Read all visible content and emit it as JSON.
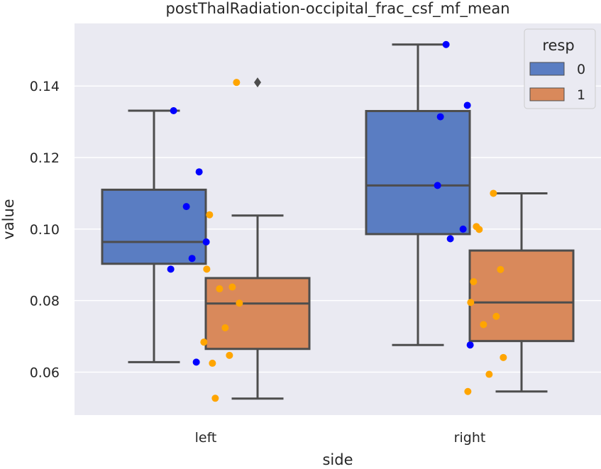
{
  "chart_data": {
    "type": "box",
    "title": "postThalRadiation-occipital_frac_csf_mf_mean",
    "xlabel": "side",
    "ylabel": "value",
    "categories": [
      "left",
      "right"
    ],
    "ylim": [
      0.048,
      0.1575
    ],
    "yticks": [
      0.06,
      0.08,
      0.1,
      0.12,
      0.14
    ],
    "ytick_labels": [
      "0.06",
      "0.08",
      "0.10",
      "0.12",
      "0.14"
    ],
    "grid": true,
    "legend": {
      "title": "resp",
      "position": "top-right",
      "entries": [
        "0",
        "1"
      ]
    },
    "colors": {
      "plot_bg": "#eaeaf2",
      "grid": "#ffffff",
      "box_0": "#5a7dc2",
      "box_1": "#d9895b",
      "edge": "#4d4d4d",
      "point_0": "#0000ff",
      "point_1": "#ffa500"
    },
    "series": [
      {
        "name": "0",
        "boxes": [
          {
            "category": "left",
            "whisker_low": 0.0628,
            "q1": 0.0903,
            "median": 0.0964,
            "q3": 0.111,
            "whisker_high": 0.1331,
            "fliers": []
          },
          {
            "category": "right",
            "whisker_low": 0.0676,
            "q1": 0.0986,
            "median": 0.1122,
            "q3": 0.133,
            "whisker_high": 0.1516,
            "fliers": []
          }
        ],
        "points": [
          {
            "category": "left",
            "values": [
              0.1331,
              0.116,
              0.1063,
              0.0964,
              0.0918,
              0.0888,
              0.0628
            ]
          },
          {
            "category": "right",
            "values": [
              0.1516,
              0.1346,
              0.1314,
              0.1122,
              0.1,
              0.0973,
              0.0676
            ]
          }
        ]
      },
      {
        "name": "1",
        "boxes": [
          {
            "category": "left",
            "whisker_low": 0.0526,
            "q1": 0.0665,
            "median": 0.0792,
            "q3": 0.0863,
            "whisker_high": 0.1038,
            "fliers": [
              0.141
            ]
          },
          {
            "category": "right",
            "whisker_low": 0.0546,
            "q1": 0.0687,
            "median": 0.0795,
            "q3": 0.094,
            "whisker_high": 0.11,
            "fliers": []
          }
        ],
        "points": [
          {
            "category": "left",
            "values": [
              0.141,
              0.104,
              0.0888,
              0.0838,
              0.0833,
              0.0793,
              0.0724,
              0.0684,
              0.0647,
              0.0625,
              0.0527
            ]
          },
          {
            "category": "right",
            "values": [
              0.11,
              0.1007,
              0.0999,
              0.0887,
              0.0853,
              0.0795,
              0.0756,
              0.0733,
              0.0641,
              0.0594,
              0.0546
            ]
          }
        ]
      }
    ]
  }
}
